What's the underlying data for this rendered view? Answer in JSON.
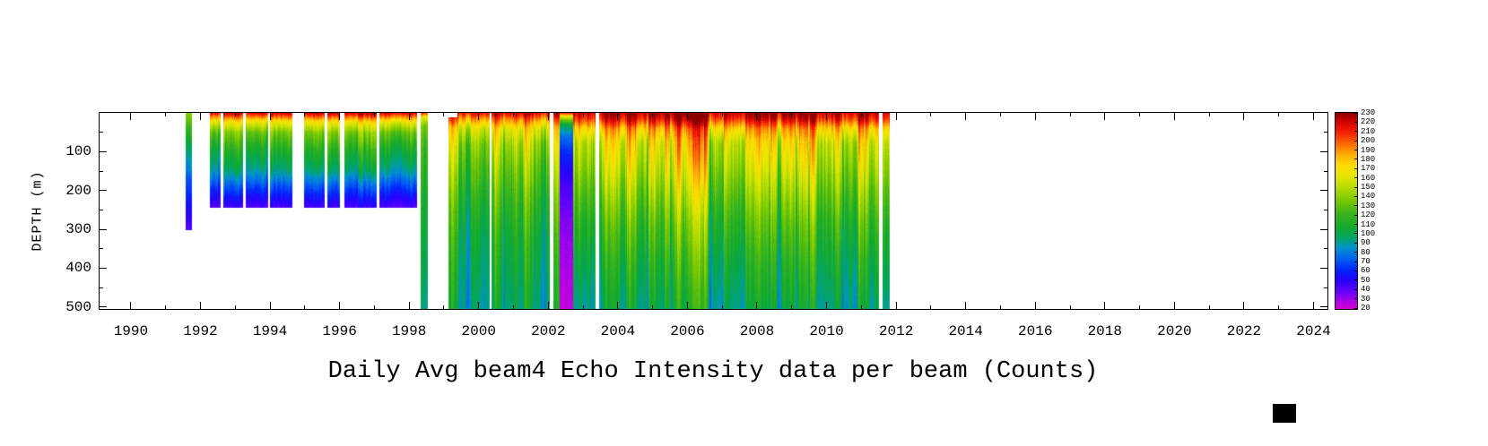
{
  "figure": {
    "title": "Daily Avg beam4 Echo Intensity data per beam (Counts)",
    "ylabel": "DEPTH (m)"
  },
  "chart_data": {
    "type": "heatmap",
    "title": "Daily Avg beam4 Echo Intensity data per beam (Counts)",
    "xlabel": "",
    "ylabel": "DEPTH (m)",
    "x_range": [
      1989.1,
      2024.4
    ],
    "x_major_ticks": [
      1990,
      1992,
      1994,
      1996,
      1998,
      2000,
      2002,
      2004,
      2006,
      2008,
      2010,
      2012,
      2014,
      2016,
      2018,
      2020,
      2022,
      2024
    ],
    "x_minor_ticks": [
      1991,
      1993,
      1995,
      1997,
      1999,
      2001,
      2003,
      2005,
      2007,
      2009,
      2011,
      2013,
      2015,
      2017,
      2019,
      2021,
      2023
    ],
    "y_range": [
      0,
      505
    ],
    "y_major_ticks": [
      100,
      200,
      300,
      400,
      500
    ],
    "y_minor_ticks": [
      50,
      150,
      250,
      350,
      450
    ],
    "grid": false,
    "plot_bg": "#ffffff",
    "colorbar": {
      "min": 20,
      "max": 230,
      "ticks": [
        230,
        220,
        210,
        200,
        190,
        180,
        170,
        160,
        150,
        140,
        130,
        120,
        110,
        100,
        90,
        80,
        70,
        60,
        50,
        40,
        30,
        20
      ],
      "stops": [
        [
          20,
          "#d400d4"
        ],
        [
          28,
          "#aa00e6"
        ],
        [
          38,
          "#6600ff"
        ],
        [
          50,
          "#2a00ff"
        ],
        [
          62,
          "#0028ff"
        ],
        [
          74,
          "#0064f0"
        ],
        [
          86,
          "#0096c8"
        ],
        [
          96,
          "#00a464"
        ],
        [
          108,
          "#14aa2a"
        ],
        [
          122,
          "#3cb41e"
        ],
        [
          136,
          "#78c800"
        ],
        [
          150,
          "#b4dc00"
        ],
        [
          162,
          "#e6e600"
        ],
        [
          174,
          "#ffdc00"
        ],
        [
          186,
          "#ffaa00"
        ],
        [
          198,
          "#ff6400"
        ],
        [
          210,
          "#f51e00"
        ],
        [
          222,
          "#cd0000"
        ],
        [
          230,
          "#8b0000"
        ]
      ]
    },
    "profiles": {
      "sparse91": [
        [
          0,
          140
        ],
        [
          40,
          120
        ],
        [
          100,
          95
        ],
        [
          170,
          72
        ],
        [
          240,
          55
        ],
        [
          300,
          42
        ]
      ],
      "moored92": [
        [
          0,
          220
        ],
        [
          8,
          200
        ],
        [
          22,
          168
        ],
        [
          50,
          135
        ],
        [
          95,
          112
        ],
        [
          145,
          95
        ],
        [
          185,
          72
        ],
        [
          215,
          56
        ],
        [
          242,
          44
        ]
      ],
      "column98": [
        [
          0,
          205
        ],
        [
          12,
          162
        ],
        [
          35,
          135
        ],
        [
          90,
          122
        ],
        [
          200,
          112
        ],
        [
          350,
          104
        ],
        [
          505,
          95
        ]
      ],
      "main_early": [
        [
          0,
          220
        ],
        [
          15,
          195
        ],
        [
          40,
          165
        ],
        [
          80,
          148
        ],
        [
          140,
          135
        ],
        [
          220,
          122
        ],
        [
          320,
          110
        ],
        [
          505,
          98
        ]
      ],
      "main": [
        [
          0,
          228
        ],
        [
          18,
          212
        ],
        [
          40,
          185
        ],
        [
          75,
          165
        ],
        [
          130,
          155
        ],
        [
          200,
          140
        ],
        [
          280,
          125
        ],
        [
          380,
          112
        ],
        [
          505,
          100
        ]
      ],
      "anomaly_purple": [
        [
          0,
          205
        ],
        [
          12,
          148
        ],
        [
          30,
          100
        ],
        [
          60,
          75
        ],
        [
          110,
          58
        ],
        [
          180,
          44
        ],
        [
          280,
          33
        ],
        [
          400,
          27
        ],
        [
          505,
          23
        ]
      ]
    },
    "segments": [
      {
        "start": 1991.58,
        "end": 1991.72,
        "depth_max": 300,
        "profile": "sparse91",
        "streak": 0.06,
        "seed": 3
      },
      {
        "start": 1992.28,
        "end": 1992.55,
        "depth_max": 242,
        "profile": "moored92",
        "streak": 0.12,
        "seed": 5
      },
      {
        "start": 1992.65,
        "end": 1993.2,
        "depth_max": 242,
        "profile": "moored92",
        "streak": 0.12,
        "seed": 7
      },
      {
        "start": 1993.3,
        "end": 1993.92,
        "depth_max": 242,
        "profile": "moored92",
        "streak": 0.12,
        "seed": 9
      },
      {
        "start": 1994.0,
        "end": 1994.62,
        "depth_max": 242,
        "profile": "moored92",
        "streak": 0.13,
        "seed": 11
      },
      {
        "start": 1994.98,
        "end": 1995.55,
        "depth_max": 242,
        "profile": "moored92",
        "streak": 0.12,
        "seed": 13
      },
      {
        "start": 1995.66,
        "end": 1995.98,
        "depth_max": 242,
        "profile": "moored92",
        "streak": 0.12,
        "seed": 15
      },
      {
        "start": 1996.15,
        "end": 1997.05,
        "depth_max": 242,
        "profile": "moored92",
        "streak": 0.14,
        "seed": 17
      },
      {
        "start": 1997.15,
        "end": 1998.2,
        "depth_max": 242,
        "profile": "moored92",
        "streak": 0.14,
        "seed": 19
      },
      {
        "start": 1998.33,
        "end": 1998.52,
        "depth_max": 505,
        "profile": "column98",
        "streak": 0.05,
        "seed": 21
      },
      {
        "start": 1999.12,
        "end": 1999.4,
        "depth_min": 12,
        "depth_max": 505,
        "profile": "main_early",
        "streak": 0.15,
        "seed": 23
      },
      {
        "start": 1999.4,
        "end": 2000.3,
        "depth_max": 505,
        "profile": "main_early",
        "streak": 0.16,
        "seed": 25
      },
      {
        "start": 2000.38,
        "end": 2002.02,
        "depth_max": 505,
        "profile": "main_early",
        "streak": 0.17,
        "seed": 27
      },
      {
        "start": 2002.15,
        "end": 2002.32,
        "depth_max": 505,
        "profile": "main_early",
        "streak": 0.15,
        "seed": 29
      },
      {
        "start": 2002.32,
        "end": 2002.72,
        "depth_max": 505,
        "profile": "anomaly_purple",
        "streak": 0.08,
        "seed": 31
      },
      {
        "start": 2002.72,
        "end": 2003.33,
        "depth_max": 505,
        "profile": "main",
        "streak": 0.15,
        "seed": 33
      },
      {
        "start": 2003.45,
        "end": 2011.48,
        "depth_max": 505,
        "profile": "main",
        "streak": 0.17,
        "seed": 35
      },
      {
        "start": 2011.62,
        "end": 2011.8,
        "depth_max": 505,
        "profile": "main",
        "streak": 0.08,
        "seed": 37
      }
    ]
  }
}
